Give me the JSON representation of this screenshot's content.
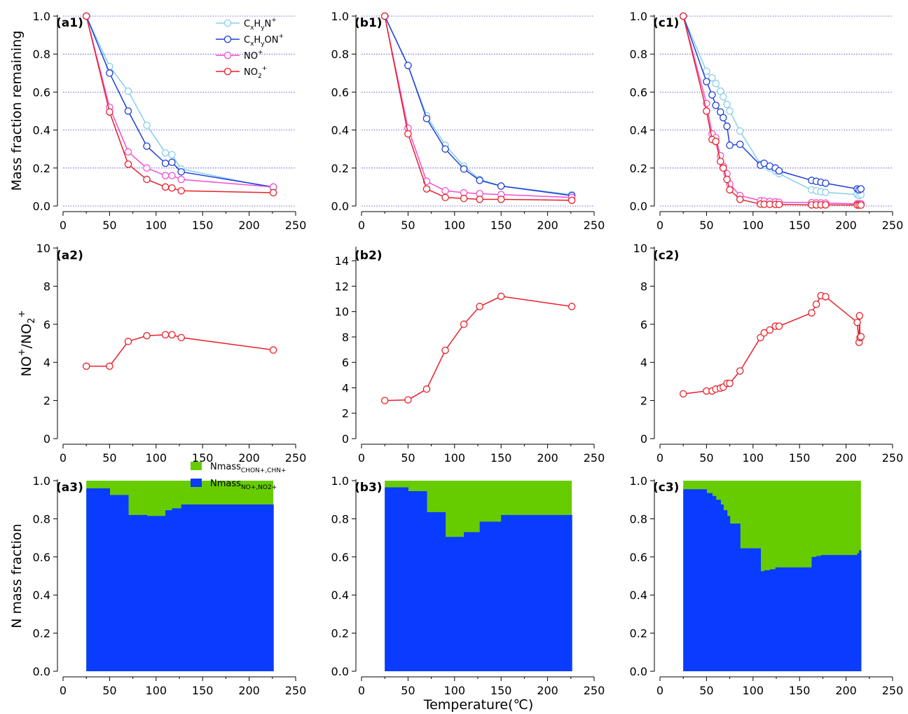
{
  "figure": {
    "row1_ylabel": "Mass fraction remaining",
    "row2_ylabel_html": [
      "NO",
      "+",
      "/NO",
      "2",
      "+"
    ],
    "row3_ylabel": "N mass fraction",
    "xlabel": "Temperature(℃)",
    "legend_row1": [
      {
        "base": "C",
        "sub1": "x",
        "mid": "H",
        "sub2": "y",
        "tail": "N",
        "sup": "+",
        "color": "#87ceeb"
      },
      {
        "base": "C",
        "sub1": "x",
        "mid": "H",
        "sub2": "y",
        "tail": "ON",
        "sup": "+",
        "color": "#1f3fd6"
      },
      {
        "base": "NO",
        "sub1": "",
        "mid": "",
        "sub2": "",
        "tail": "",
        "sup": "+",
        "color": "#f04fd0"
      },
      {
        "base": "NO",
        "sub1": "2",
        "mid": "",
        "sub2": "",
        "tail": "",
        "sup": "+",
        "color": "#e8202a"
      }
    ],
    "legend_row3": [
      {
        "name": "Nmass",
        "sub": "CHON+,CHN+",
        "color": "#66cc00"
      },
      {
        "name": "Nmass",
        "sub": "NO+,NO2+",
        "color": "#0a3cff"
      }
    ]
  },
  "chart_data": [
    {
      "panel": "(a1)",
      "type": "line",
      "xlim": [
        0,
        250
      ],
      "ylim": [
        0,
        1.0
      ],
      "series": [
        {
          "name": "CxHyN+",
          "x": [
            25,
            50,
            70,
            90,
            110,
            117,
            127,
            226
          ],
          "y": [
            1.0,
            0.735,
            0.605,
            0.425,
            0.28,
            0.27,
            0.195,
            0.095
          ]
        },
        {
          "name": "CxHyON+",
          "x": [
            25,
            50,
            70,
            90,
            110,
            117,
            127,
            226
          ],
          "y": [
            1.0,
            0.7,
            0.5,
            0.315,
            0.225,
            0.23,
            0.18,
            0.1
          ]
        },
        {
          "name": "NO+",
          "x": [
            25,
            50,
            70,
            90,
            110,
            117,
            127,
            226
          ],
          "y": [
            1.0,
            0.52,
            0.285,
            0.2,
            0.16,
            0.16,
            0.14,
            0.1
          ]
        },
        {
          "name": "NO2+",
          "x": [
            25,
            50,
            70,
            90,
            110,
            117,
            127,
            226
          ],
          "y": [
            1.0,
            0.495,
            0.22,
            0.14,
            0.1,
            0.095,
            0.08,
            0.07
          ]
        }
      ]
    },
    {
      "panel": "(b1)",
      "type": "line",
      "xlim": [
        0,
        250
      ],
      "ylim": [
        0,
        1.0
      ],
      "series": [
        {
          "name": "CxHyN+",
          "x": [
            25,
            50,
            70,
            90,
            110,
            127,
            150,
            226
          ],
          "y": [
            1.0,
            0.74,
            0.475,
            0.32,
            0.21,
            0.14,
            0.105,
            0.06
          ]
        },
        {
          "name": "CxHyON+",
          "x": [
            25,
            50,
            70,
            90,
            110,
            127,
            150,
            226
          ],
          "y": [
            1.0,
            0.74,
            0.46,
            0.3,
            0.195,
            0.135,
            0.105,
            0.055
          ]
        },
        {
          "name": "NO+",
          "x": [
            25,
            50,
            70,
            90,
            110,
            127,
            150,
            226
          ],
          "y": [
            1.0,
            0.41,
            0.13,
            0.08,
            0.07,
            0.065,
            0.06,
            0.045
          ]
        },
        {
          "name": "NO2+",
          "x": [
            25,
            50,
            70,
            90,
            110,
            127,
            150,
            226
          ],
          "y": [
            1.0,
            0.38,
            0.09,
            0.045,
            0.04,
            0.035,
            0.035,
            0.03
          ]
        }
      ]
    },
    {
      "panel": "(c1)",
      "type": "line",
      "xlim": [
        0,
        250
      ],
      "ylim": [
        0,
        1.0
      ],
      "series": [
        {
          "name": "CxHyN+",
          "x": [
            25,
            50,
            56,
            60,
            65,
            68,
            72,
            75,
            86,
            108,
            112,
            118,
            124,
            128,
            163,
            168,
            173,
            178,
            212,
            214,
            216
          ],
          "y": [
            1.0,
            0.71,
            0.675,
            0.645,
            0.605,
            0.575,
            0.535,
            0.5,
            0.395,
            0.22,
            0.215,
            0.2,
            0.185,
            0.17,
            0.085,
            0.08,
            0.075,
            0.072,
            0.06,
            0.055,
            0.06
          ]
        },
        {
          "name": "CxHyON+",
          "x": [
            25,
            50,
            56,
            60,
            65,
            68,
            72,
            75,
            86,
            108,
            112,
            118,
            124,
            128,
            163,
            168,
            173,
            178,
            212,
            214,
            216
          ],
          "y": [
            1.0,
            0.655,
            0.585,
            0.53,
            0.495,
            0.465,
            0.42,
            0.32,
            0.325,
            0.215,
            0.225,
            0.21,
            0.2,
            0.185,
            0.135,
            0.13,
            0.125,
            0.12,
            0.09,
            0.085,
            0.09
          ]
        },
        {
          "name": "NO+",
          "x": [
            25,
            50,
            56,
            60,
            65,
            68,
            72,
            75,
            86,
            108,
            112,
            118,
            124,
            128,
            163,
            168,
            173,
            178,
            212,
            214,
            216
          ],
          "y": [
            1.0,
            0.54,
            0.38,
            0.36,
            0.265,
            0.21,
            0.17,
            0.115,
            0.055,
            0.028,
            0.026,
            0.024,
            0.022,
            0.02,
            0.018,
            0.016,
            0.016,
            0.015,
            0.012,
            0.012,
            0.012
          ]
        },
        {
          "name": "NO2+",
          "x": [
            25,
            50,
            56,
            60,
            65,
            68,
            72,
            75,
            86,
            108,
            112,
            118,
            124,
            128,
            163,
            168,
            173,
            178,
            212,
            214,
            216
          ],
          "y": [
            1.0,
            0.5,
            0.35,
            0.34,
            0.235,
            0.2,
            0.14,
            0.085,
            0.035,
            0.01,
            0.009,
            0.009,
            0.008,
            0.008,
            0.006,
            0.006,
            0.006,
            0.006,
            0.005,
            0.005,
            0.005
          ]
        }
      ]
    },
    {
      "panel": "(a2)",
      "type": "line",
      "xlim": [
        0,
        250
      ],
      "ylim": [
        0,
        10
      ],
      "series": [
        {
          "name": "NO+/NO2+",
          "x": [
            25,
            50,
            70,
            90,
            110,
            117,
            127,
            226
          ],
          "y": [
            3.8,
            3.8,
            5.1,
            5.4,
            5.45,
            5.45,
            5.3,
            4.65
          ]
        }
      ]
    },
    {
      "panel": "(b2)",
      "type": "line",
      "xlim": [
        0,
        250
      ],
      "ylim": [
        0,
        15
      ],
      "series": [
        {
          "name": "NO+/NO2+",
          "x": [
            25,
            50,
            70,
            90,
            110,
            127,
            150,
            226
          ],
          "y": [
            3.0,
            3.05,
            3.9,
            6.95,
            9.0,
            10.4,
            11.2,
            10.4
          ]
        }
      ]
    },
    {
      "panel": "(c2)",
      "type": "line",
      "xlim": [
        0,
        250
      ],
      "ylim": [
        0,
        10
      ],
      "series": [
        {
          "name": "NO+/NO2+",
          "x": [
            25,
            50,
            56,
            60,
            65,
            68,
            72,
            75,
            86,
            108,
            112,
            118,
            124,
            128,
            163,
            168,
            173,
            178,
            212,
            214,
            214.5,
            215,
            216
          ],
          "y": [
            2.35,
            2.5,
            2.5,
            2.6,
            2.65,
            2.7,
            2.9,
            2.9,
            3.55,
            5.3,
            5.55,
            5.7,
            5.9,
            5.9,
            6.6,
            7.05,
            7.5,
            7.45,
            6.1,
            5.05,
            6.45,
            5.3,
            5.35
          ]
        }
      ]
    },
    {
      "panel": "(a3)",
      "type": "area",
      "xlim": [
        0,
        250
      ],
      "ylim": [
        0,
        1.0
      ],
      "series": [
        {
          "name": "Nmass_NO+,NO2+",
          "x": [
            25,
            50,
            70,
            90,
            110,
            117,
            127,
            226
          ],
          "y": [
            0.96,
            0.925,
            0.82,
            0.815,
            0.845,
            0.855,
            0.875,
            0.875
          ]
        },
        {
          "name": "Nmass_CHON+,CHN+",
          "total": 1.0
        }
      ]
    },
    {
      "panel": "(b3)",
      "type": "area",
      "xlim": [
        0,
        250
      ],
      "ylim": [
        0,
        1.0
      ],
      "series": [
        {
          "name": "Nmass_NO+,NO2+",
          "x": [
            25,
            50,
            70,
            90,
            110,
            127,
            150,
            226
          ],
          "y": [
            0.965,
            0.945,
            0.835,
            0.705,
            0.73,
            0.785,
            0.82,
            0.82
          ]
        },
        {
          "name": "Nmass_CHON+,CHN+",
          "total": 1.0
        }
      ]
    },
    {
      "panel": "(c3)",
      "type": "area",
      "xlim": [
        0,
        250
      ],
      "ylim": [
        0,
        1.0
      ],
      "series": [
        {
          "name": "Nmass_NO+,NO2+",
          "x": [
            25,
            50,
            56,
            60,
            65,
            68,
            72,
            75,
            86,
            108,
            112,
            118,
            124,
            128,
            163,
            168,
            173,
            178,
            212,
            214,
            216
          ],
          "y": [
            0.955,
            0.935,
            0.92,
            0.9,
            0.875,
            0.845,
            0.815,
            0.775,
            0.645,
            0.525,
            0.53,
            0.535,
            0.545,
            0.545,
            0.6,
            0.605,
            0.61,
            0.61,
            0.62,
            0.635,
            0.59
          ]
        },
        {
          "name": "Nmass_CHON+,CHN+",
          "total": 1.0
        }
      ]
    }
  ]
}
